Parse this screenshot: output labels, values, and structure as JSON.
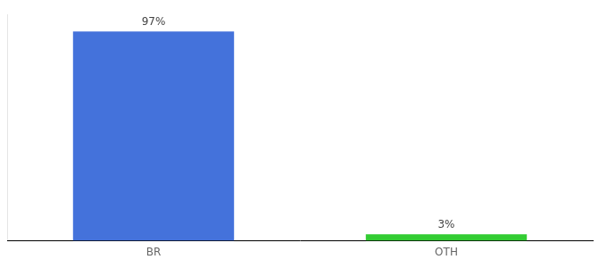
{
  "chart_data": {
    "type": "bar",
    "categories": [
      "BR",
      "OTH"
    ],
    "values": [
      97,
      3
    ],
    "value_labels": [
      "97%",
      "3%"
    ],
    "colors": [
      "#4472db",
      "#33cc33"
    ],
    "ylim": [
      0,
      105
    ],
    "grid": false,
    "data_labels": true,
    "tick_labels": "x"
  }
}
